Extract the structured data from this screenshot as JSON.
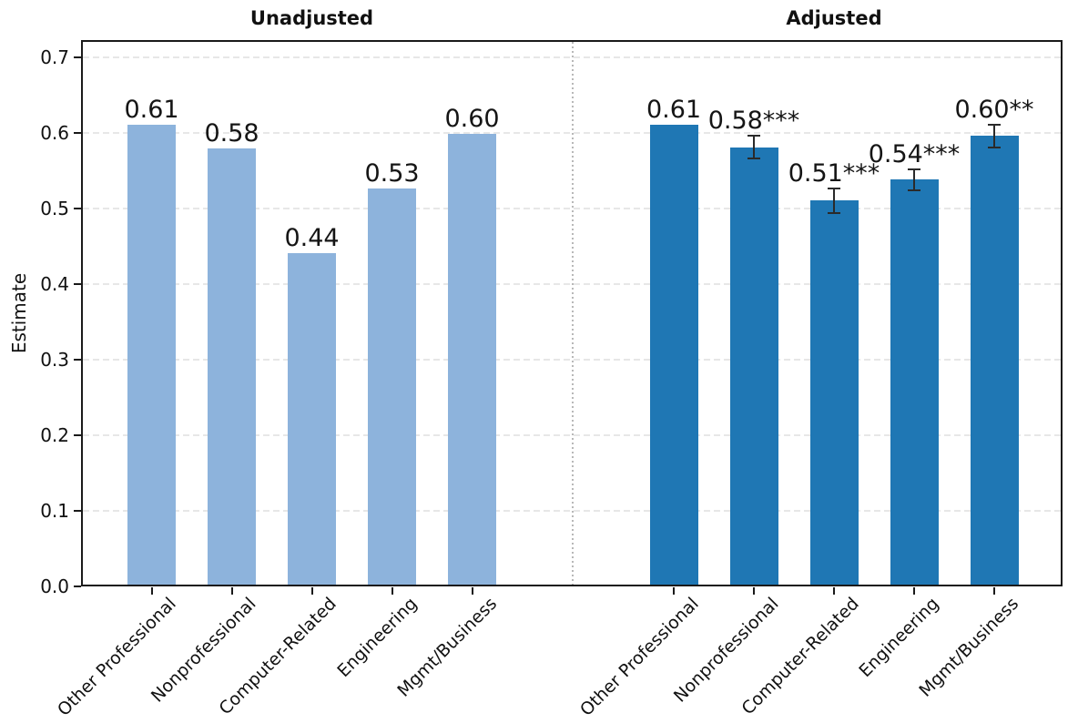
{
  "chart_data": {
    "type": "bar",
    "ylabel": "Estimate",
    "categories": [
      "Other Professional",
      "Nonprofessional",
      "Computer-Related",
      "Engineering",
      "Mgmt/Business"
    ],
    "ytick_labels": [
      "0.0",
      "0.1",
      "0.2",
      "0.3",
      "0.4",
      "0.5",
      "0.6",
      "0.7"
    ],
    "ytick_values": [
      0.0,
      0.1,
      0.2,
      0.3,
      0.4,
      0.5,
      0.6,
      0.7
    ],
    "ylim": [
      0.0,
      0.7225
    ],
    "grid": {
      "horizontal": true,
      "style": "dashed",
      "color": "#e7e7e7"
    },
    "legend": "none",
    "panel_divider_style": "dotted",
    "axis_color": "#1a1a1a",
    "error_bar_color": "#2a2a2a",
    "panels": [
      {
        "title": "Unadjusted",
        "bar_color": "#8db3dc",
        "values": [
          0.61,
          0.579,
          0.441,
          0.526,
          0.599
        ],
        "labels": [
          "0.61",
          "0.58",
          "0.44",
          "0.53",
          "0.60"
        ],
        "errors": [
          null,
          null,
          null,
          null,
          null
        ],
        "sig": [
          "",
          "",
          "",
          "",
          ""
        ]
      },
      {
        "title": "Adjusted",
        "bar_color": "#1f77b4",
        "values": [
          0.61,
          0.581,
          0.51,
          0.538,
          0.596
        ],
        "labels": [
          "0.61",
          "0.58",
          "0.51",
          "0.54",
          "0.60"
        ],
        "errors": [
          null,
          0.015,
          0.016,
          0.014,
          0.015
        ],
        "sig": [
          "",
          "***",
          "***",
          "***",
          "**"
        ]
      }
    ]
  }
}
